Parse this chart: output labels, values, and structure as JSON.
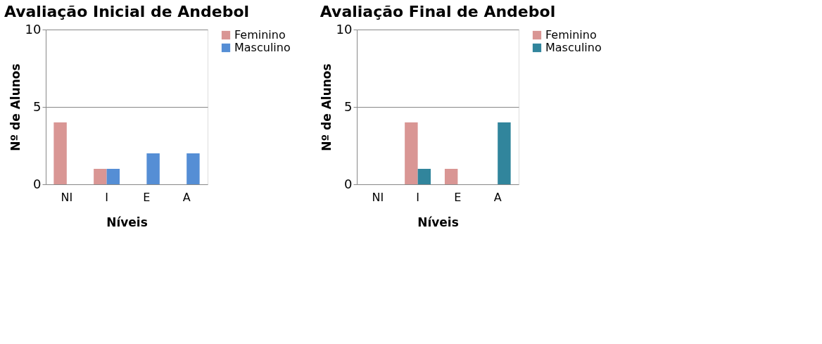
{
  "chart_data": [
    {
      "type": "bar",
      "title": "Avaliação Inicial de Andebol",
      "xlabel": "Níveis",
      "ylabel": "Nº de Alunos",
      "categories": [
        "NI",
        "I",
        "E",
        "A"
      ],
      "series": [
        {
          "name": "Feminino",
          "color": "#d99694",
          "values": [
            4,
            1,
            0,
            0
          ]
        },
        {
          "name": "Masculino",
          "color": "#558ed5",
          "values": [
            0,
            1,
            2,
            2
          ]
        }
      ],
      "ylim": [
        0,
        10
      ],
      "yticks": [
        0,
        5,
        10
      ],
      "grid": "y",
      "legend": "right"
    },
    {
      "type": "bar",
      "title": "Avaliação Final de Andebol",
      "xlabel": "Níveis",
      "ylabel": "Nº de Alunos",
      "categories": [
        "NI",
        "I",
        "E",
        "A"
      ],
      "series": [
        {
          "name": "Feminino",
          "color": "#d99694",
          "values": [
            0,
            4,
            1,
            0
          ]
        },
        {
          "name": "Masculino",
          "color": "#31859c",
          "values": [
            0,
            1,
            0,
            4
          ]
        }
      ],
      "ylim": [
        0,
        10
      ],
      "yticks": [
        0,
        5,
        10
      ],
      "grid": "y",
      "legend": "right"
    }
  ]
}
